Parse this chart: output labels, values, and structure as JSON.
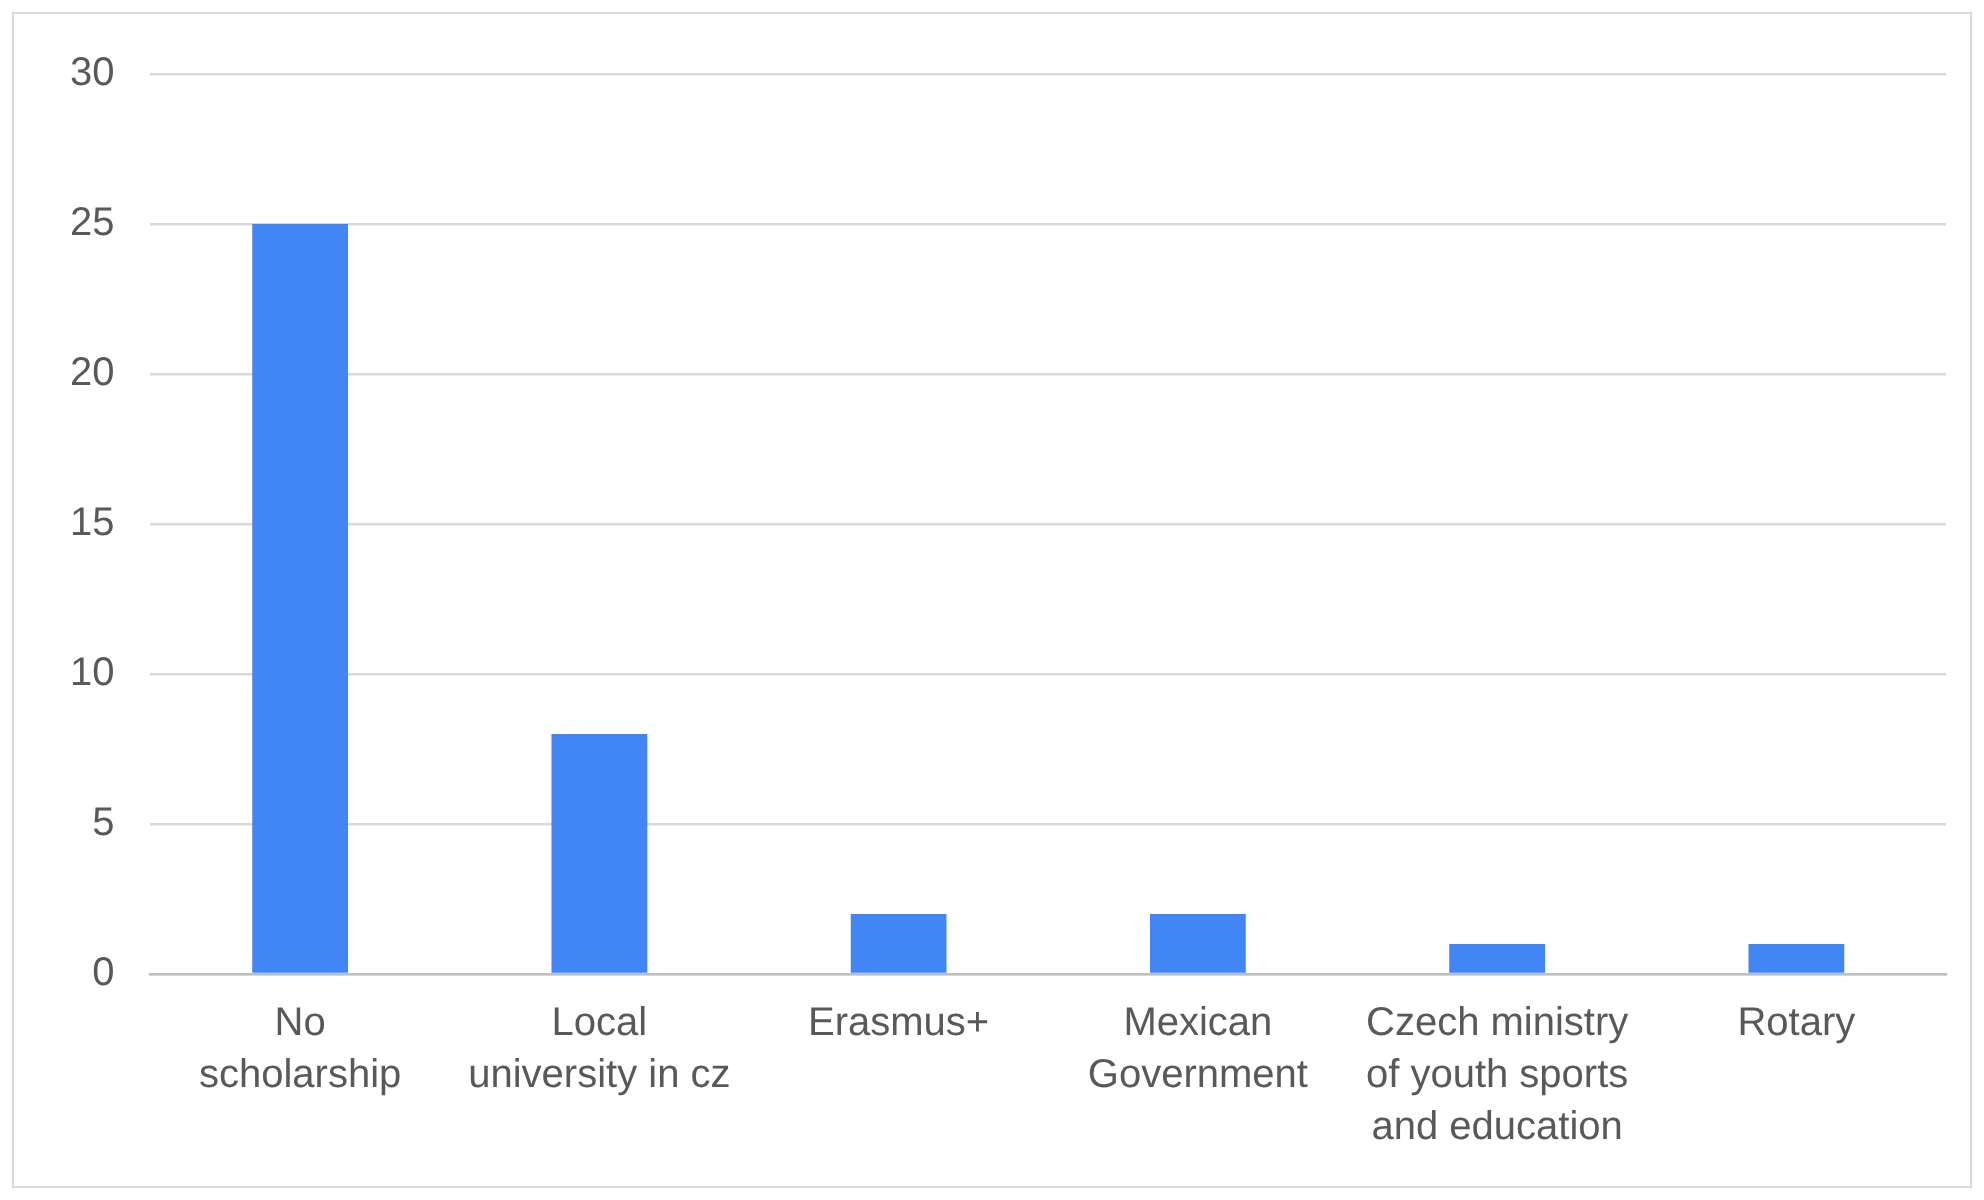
{
  "chart_data": {
    "type": "bar",
    "categories": [
      "No scholarship",
      "Local university in cz",
      "Erasmus+",
      "Mexican Government",
      "Czech ministry of youth sports and education",
      "Rotary"
    ],
    "values": [
      25,
      8,
      2,
      2,
      1,
      1
    ],
    "color": "#4285f4",
    "ylim": [
      0,
      30
    ],
    "yticks": [
      0,
      5,
      10,
      15,
      20,
      25,
      30
    ],
    "grid": "y",
    "legend": false
  }
}
